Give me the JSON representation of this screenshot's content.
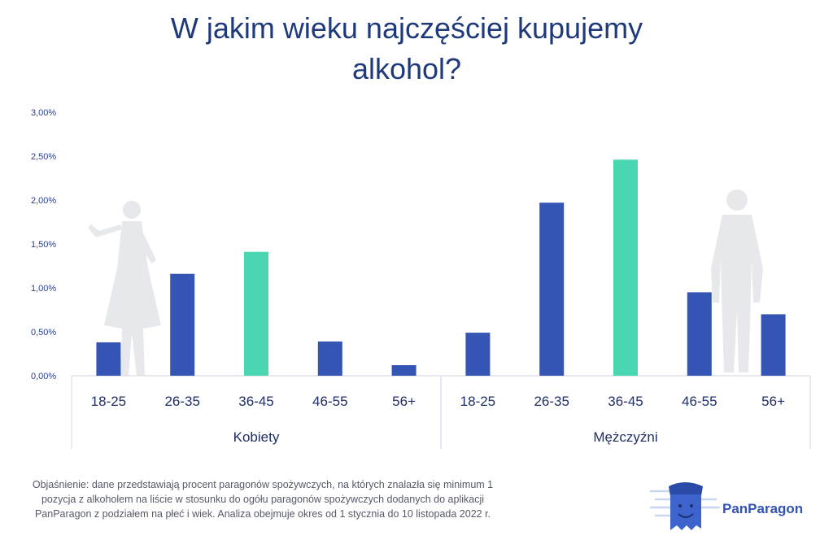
{
  "title_line1": "W jakim wieku najczęściej kupujemy",
  "title_line2": "alkohol?",
  "chart_data": {
    "type": "bar",
    "title": "W jakim wieku najczęściej kupujemy alkohol?",
    "ylim": [
      0,
      3.0
    ],
    "y_ticks": [
      "0,00%",
      "0,50%",
      "1,00%",
      "1,50%",
      "2,00%",
      "2,50%",
      "3,00%"
    ],
    "y_tick_values": [
      0,
      0.5,
      1.0,
      1.5,
      2.0,
      2.5,
      3.0
    ],
    "categories": [
      "18-25",
      "26-35",
      "36-45",
      "46-55",
      "56+"
    ],
    "groups": [
      {
        "name": "Kobiety",
        "values": [
          0.38,
          1.16,
          1.41,
          0.39,
          0.12
        ]
      },
      {
        "name": "Mężczyźni",
        "values": [
          0.49,
          1.97,
          2.46,
          0.95,
          0.7
        ]
      }
    ],
    "colors": {
      "bar": "#3555b5",
      "highlight": "#49d6b0",
      "axis": "#dfe2ea"
    },
    "highlight_category": "36-45"
  },
  "footnote": "Objaśnienie: dane przedstawiają procent paragonów spożywczych, na których znalazła się minimum 1 pozycja z alkoholem na liście w stosunku do ogółu paragonów spożywczych dodanych do aplikacji PanParagon z podziałem na płeć i wiek. Analiza obejmuje okres od 1 stycznia do 10 listopada 2022 r.",
  "brand": "PanParagon"
}
